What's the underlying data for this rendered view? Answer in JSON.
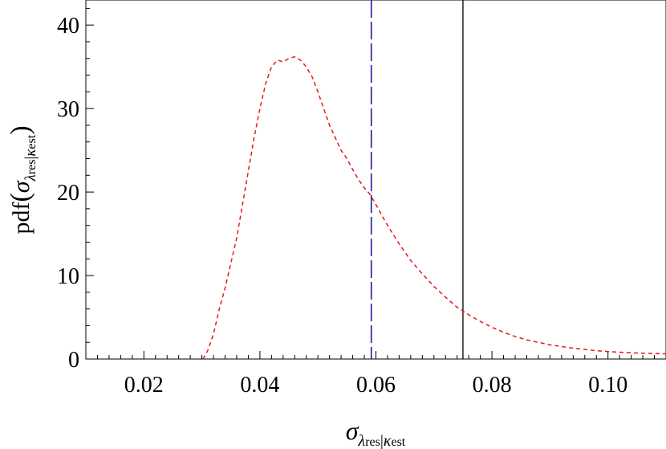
{
  "chart_data": {
    "type": "line",
    "title": "",
    "xlabel": "",
    "ylabel": "",
    "xlim": [
      0.01,
      0.11
    ],
    "ylim": [
      0,
      43
    ],
    "grid": false,
    "x_ticks": [
      {
        "value": 0.02,
        "label": "0.02"
      },
      {
        "value": 0.04,
        "label": "0.04"
      },
      {
        "value": 0.06,
        "label": "0.06"
      },
      {
        "value": 0.08,
        "label": "0.08"
      },
      {
        "value": 0.1,
        "label": "0.10"
      }
    ],
    "y_ticks": [
      {
        "value": 0,
        "label": "0"
      },
      {
        "value": 10,
        "label": "10"
      },
      {
        "value": 20,
        "label": "20"
      },
      {
        "value": 30,
        "label": "30"
      },
      {
        "value": 40,
        "label": "40"
      }
    ],
    "series": [
      {
        "style": "dashed",
        "color": "#e8141e",
        "x": [
          0.0302,
          0.031,
          0.032,
          0.033,
          0.034,
          0.035,
          0.036,
          0.037,
          0.038,
          0.039,
          0.04,
          0.041,
          0.042,
          0.043,
          0.044,
          0.045,
          0.046,
          0.047,
          0.048,
          0.049,
          0.05,
          0.051,
          0.052,
          0.053,
          0.054,
          0.055,
          0.056,
          0.057,
          0.058,
          0.059,
          0.06,
          0.062,
          0.064,
          0.066,
          0.068,
          0.07,
          0.072,
          0.074,
          0.076,
          0.078,
          0.08,
          0.082,
          0.084,
          0.086,
          0.088,
          0.09,
          0.092,
          0.094,
          0.096,
          0.098,
          0.1,
          0.102,
          0.104,
          0.106,
          0.108,
          0.11
        ],
        "y": [
          0.0,
          1.0,
          3.0,
          6.0,
          8.5,
          11.5,
          14.5,
          18.5,
          22.5,
          26.5,
          30.0,
          33.0,
          35.0,
          35.8,
          35.6,
          36.0,
          36.2,
          35.8,
          35.0,
          33.8,
          32.0,
          30.0,
          28.0,
          26.5,
          25.0,
          24.0,
          22.7,
          21.5,
          20.5,
          19.7,
          18.5,
          16.0,
          13.8,
          11.8,
          10.2,
          8.7,
          7.4,
          6.2,
          5.3,
          4.5,
          3.8,
          3.2,
          2.7,
          2.3,
          2.0,
          1.7,
          1.5,
          1.3,
          1.15,
          1.0,
          0.9,
          0.82,
          0.75,
          0.7,
          0.66,
          0.63
        ]
      }
    ],
    "reference_lines": [
      {
        "x": 0.0592,
        "style": "long-dashed",
        "color": "#1a1aa6"
      },
      {
        "x": 0.075,
        "style": "solid",
        "color": "#000000"
      }
    ]
  }
}
